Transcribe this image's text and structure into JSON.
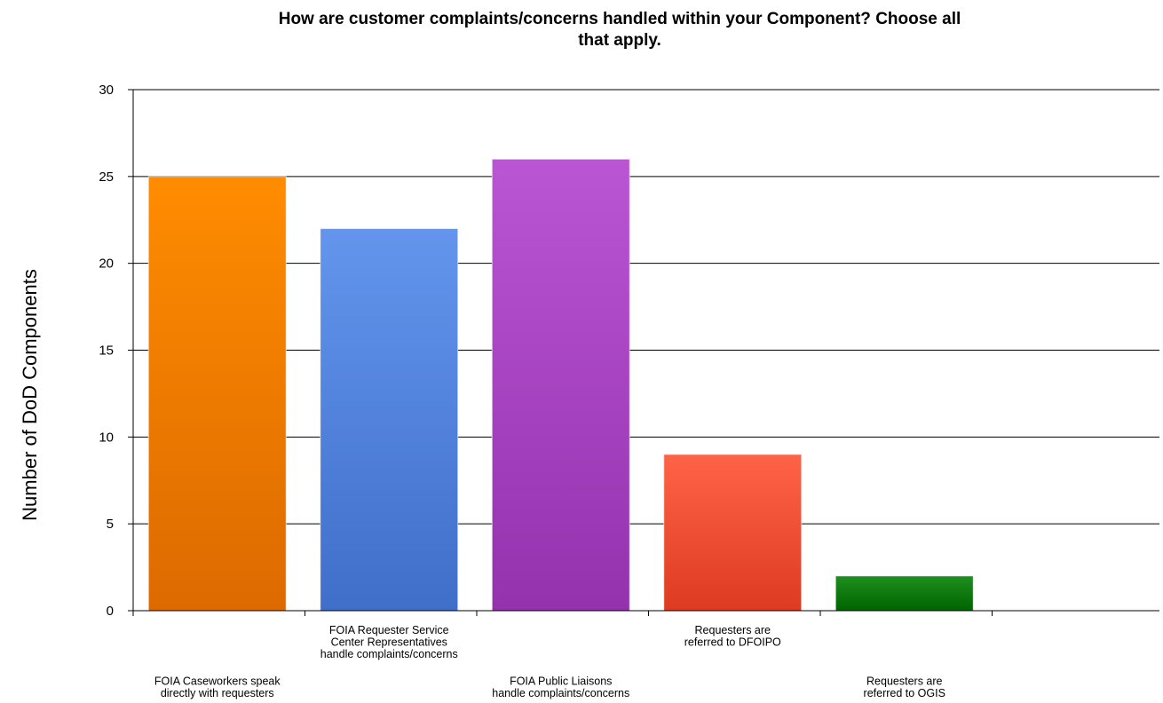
{
  "chart_data": {
    "type": "bar",
    "title_lines": [
      "How are customer complaints/concerns handled within your Component?  Choose all",
      "that apply."
    ],
    "xlabel": "",
    "ylabel": "Number of DoD Components",
    "ylim": [
      0,
      30
    ],
    "yticks": [
      0,
      5,
      10,
      15,
      20,
      25,
      30
    ],
    "grid": true,
    "categories": [
      [
        "FOIA Caseworkers speak",
        "directly with requesters"
      ],
      [
        "FOIA Requester Service",
        "Center Representatives",
        "handle complaints/concerns"
      ],
      [
        "FOIA Public Liaisons",
        "handle complaints/concerns"
      ],
      [
        "Requesters are",
        "referred to DFOIPO"
      ],
      [
        "Requesters are",
        "referred to OGIS"
      ]
    ],
    "values": [
      25,
      22,
      26,
      9,
      2
    ],
    "colors": [
      [
        "#FF8C00",
        "#DC6A00"
      ],
      [
        "#6495ED",
        "#3F6FC8"
      ],
      [
        "#BA55D3",
        "#9432AE"
      ],
      [
        "#FF6347",
        "#DD3B22"
      ],
      [
        "#1E8F1E",
        "#006400"
      ]
    ]
  }
}
